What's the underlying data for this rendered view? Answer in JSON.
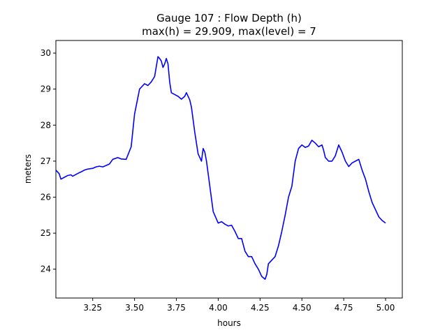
{
  "chart_data": {
    "type": "line",
    "title": "Gauge 107 : Flow Depth (h)",
    "subtitle": "max(h) =  29.909,    max(level) = 7",
    "xlabel": "hours",
    "ylabel": "meters",
    "xlim": [
      3.03,
      5.1
    ],
    "ylim": [
      23.2,
      30.35
    ],
    "xticks": [
      3.25,
      3.5,
      3.75,
      4.0,
      4.25,
      4.5,
      4.75,
      5.0
    ],
    "xtick_labels": [
      "3.25",
      "3.50",
      "3.75",
      "4.00",
      "4.25",
      "4.50",
      "4.75",
      "5.00"
    ],
    "yticks": [
      24,
      25,
      26,
      27,
      28,
      29,
      30
    ],
    "ytick_labels": [
      "24",
      "25",
      "26",
      "27",
      "28",
      "29",
      "30"
    ],
    "grid": false,
    "series": [
      {
        "color": "#0000ff",
        "x": [
          3.03,
          3.05,
          3.06,
          3.08,
          3.1,
          3.12,
          3.13,
          3.15,
          3.17,
          3.18,
          3.2,
          3.22,
          3.25,
          3.27,
          3.29,
          3.31,
          3.33,
          3.35,
          3.37,
          3.4,
          3.42,
          3.45,
          3.48,
          3.5,
          3.53,
          3.56,
          3.58,
          3.6,
          3.62,
          3.64,
          3.65,
          3.66,
          3.67,
          3.68,
          3.69,
          3.7,
          3.71,
          3.72,
          3.74,
          3.76,
          3.78,
          3.8,
          3.81,
          3.83,
          3.84,
          3.86,
          3.88,
          3.9,
          3.91,
          3.92,
          3.93,
          3.95,
          3.97,
          4.0,
          4.02,
          4.04,
          4.06,
          4.08,
          4.1,
          4.12,
          4.14,
          4.16,
          4.18,
          4.2,
          4.22,
          4.24,
          4.26,
          4.28,
          4.29,
          4.3,
          4.32,
          4.34,
          4.36,
          4.38,
          4.4,
          4.42,
          4.44,
          4.46,
          4.48,
          4.5,
          4.52,
          4.54,
          4.56,
          4.58,
          4.6,
          4.62,
          4.63,
          4.64,
          4.66,
          4.68,
          4.7,
          4.72,
          4.74,
          4.76,
          4.78,
          4.8,
          4.82,
          4.84,
          4.86,
          4.88,
          4.9,
          4.92,
          4.94,
          4.96,
          4.98,
          5.0
        ],
        "y": [
          26.75,
          26.65,
          26.5,
          26.55,
          26.6,
          26.62,
          26.58,
          26.63,
          26.68,
          26.7,
          26.75,
          26.78,
          26.8,
          26.84,
          26.86,
          26.84,
          26.88,
          26.92,
          27.05,
          27.1,
          27.06,
          27.05,
          27.4,
          28.3,
          29.0,
          29.15,
          29.1,
          29.2,
          29.35,
          29.9,
          29.85,
          29.78,
          29.6,
          29.7,
          29.85,
          29.7,
          29.2,
          28.9,
          28.85,
          28.8,
          28.72,
          28.8,
          28.9,
          28.7,
          28.5,
          27.8,
          27.2,
          27.0,
          27.35,
          27.25,
          27.0,
          26.3,
          25.6,
          25.28,
          25.32,
          25.25,
          25.2,
          25.22,
          25.05,
          24.85,
          24.85,
          24.5,
          24.35,
          24.35,
          24.15,
          24.0,
          23.8,
          23.72,
          23.85,
          24.15,
          24.25,
          24.35,
          24.65,
          25.05,
          25.5,
          26.0,
          26.3,
          27.0,
          27.35,
          27.45,
          27.38,
          27.42,
          27.58,
          27.5,
          27.4,
          27.45,
          27.3,
          27.1,
          27.0,
          27.0,
          27.15,
          27.45,
          27.25,
          27.0,
          26.85,
          26.95,
          27.0,
          27.05,
          26.75,
          26.5,
          26.15,
          25.85,
          25.65,
          25.45,
          25.35,
          25.28
        ]
      }
    ]
  }
}
